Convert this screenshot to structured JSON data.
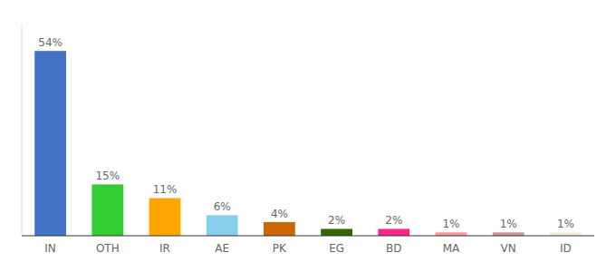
{
  "chart_data": {
    "type": "bar",
    "categories": [
      "IN",
      "OTH",
      "IR",
      "AE",
      "PK",
      "EG",
      "BD",
      "MA",
      "VN",
      "ID"
    ],
    "values": [
      54,
      15,
      11,
      6,
      4,
      2,
      2,
      1,
      1,
      1
    ],
    "value_labels": [
      "54%",
      "15%",
      "11%",
      "6%",
      "4%",
      "2%",
      "2%",
      "1%",
      "1%",
      "1%"
    ],
    "colors": [
      "#4472C4",
      "#33CC33",
      "#FFA500",
      "#87CEEB",
      "#CC6600",
      "#336600",
      "#FF2288",
      "#FF9999",
      "#CC9999",
      "#F0EDD8"
    ],
    "ylim": [
      0,
      62
    ],
    "data_labels": true,
    "tick_labels": "x",
    "grid": false
  }
}
